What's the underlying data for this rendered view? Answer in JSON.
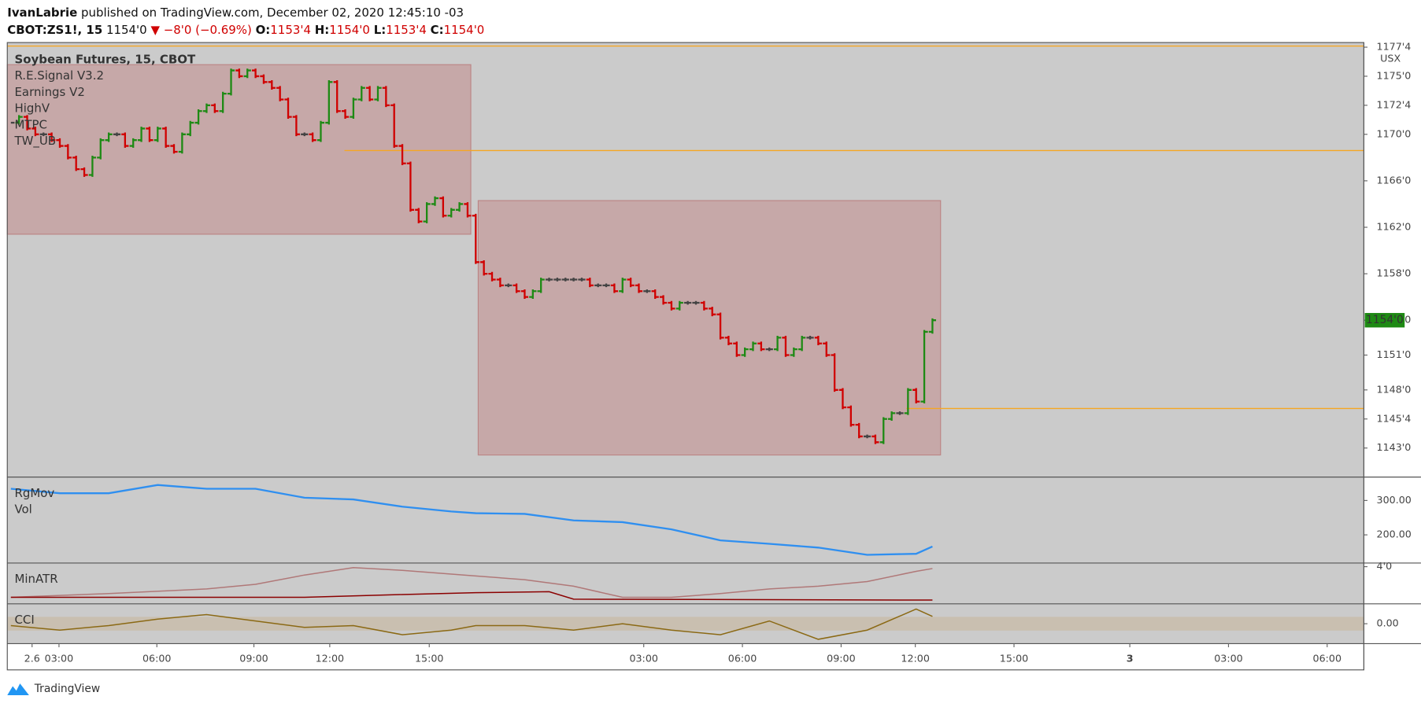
{
  "header": {
    "author": "IvanLabrie",
    "published": "published on TradingView.com, December 02, 2020 12:45:10 -03"
  },
  "quote": {
    "symbol": "CBOT:ZS1!, 15",
    "last": "1154'0",
    "change": "▼ −8'0 (−0.69%)",
    "open_label": "O:",
    "open": "1153'4",
    "high_label": "H:",
    "high": "1154'0",
    "low_label": "L:",
    "low": "1153'4",
    "close_label": "C:",
    "close": "1154'0"
  },
  "footer": "TradingView",
  "chart_data": [
    {
      "type": "bars",
      "title": "Soybean Futures, 15, CBOT",
      "indicators": [
        "R.E.Signal V3.2",
        "Earnings V2",
        "HighV",
        "MTPC",
        "TW_UB"
      ],
      "units": "USX",
      "values": [
        1171,
        1171.5,
        1170.5,
        1170,
        1170,
        1169.5,
        1169,
        1168,
        1167,
        1166.5,
        1168,
        1169.5,
        1170,
        1170,
        1169,
        1169.5,
        1170.5,
        1169.5,
        1170.5,
        1169,
        1168.5,
        1170,
        1171,
        1172,
        1172.5,
        1172,
        1173.5,
        1175.5,
        1175,
        1175.5,
        1175,
        1174.5,
        1174,
        1173,
        1171.5,
        1170,
        1170,
        1169.5,
        1171,
        1174.5,
        1172,
        1171.5,
        1173,
        1174,
        1173,
        1174,
        1172.5,
        1169,
        1167.5,
        1163.5,
        1162.5,
        1164,
        1164.5,
        1163,
        1163.5,
        1164,
        1163,
        1159,
        1158,
        1157.5,
        1157,
        1157,
        1156.5,
        1156,
        1156.5,
        1157.5,
        1157.5,
        1157.5,
        1157.5,
        1157.5,
        1157.5,
        1157,
        1157,
        1157,
        1156.5,
        1157.5,
        1157,
        1156.5,
        1156.5,
        1156,
        1155.5,
        1155,
        1155.5,
        1155.5,
        1155.5,
        1155,
        1154.5,
        1152.5,
        1152,
        1151,
        1151.5,
        1152,
        1151.5,
        1151.5,
        1152.5,
        1151,
        1151.5,
        1152.5,
        1152.5,
        1152,
        1151,
        1148,
        1146.5,
        1145,
        1144,
        1144,
        1143.5,
        1145.5,
        1146,
        1146,
        1148,
        1147,
        1153,
        1154
      ],
      "colors": {
        "up": "#1e8a14",
        "down": "#d00000",
        "flat": "#444444"
      },
      "xlim": [
        -0.44,
        165.9
      ],
      "xticks": [
        {
          "value": 5.9,
          "label": "03:00"
        },
        {
          "value": 17.9,
          "label": "06:00"
        },
        {
          "value": 29.8,
          "label": "09:00"
        },
        {
          "value": 39.1,
          "label": "12:00"
        },
        {
          "value": 51.3,
          "label": "15:00"
        },
        2.6,
        {
          "value": 77.6,
          "label": "03:00"
        },
        {
          "value": 89.7,
          "label": "06:00"
        },
        {
          "value": 101.8,
          "label": "09:00"
        },
        {
          "value": 110.9,
          "label": "12:00"
        },
        {
          "value": 123.0,
          "label": "15:00"
        },
        {
          "value": 137.2,
          "label": "3"
        },
        {
          "value": 149.3,
          "label": "03:00"
        },
        {
          "value": 161.4,
          "label": "06:00"
        }
      ],
      "ylim": [
        1140.5,
        1177.9
      ],
      "yticks": [
        {
          "value": 1177.5,
          "label": "1177'4"
        },
        {
          "value": 1175,
          "label": "1175'0"
        },
        {
          "value": 1172.5,
          "label": "1172'4"
        },
        {
          "value": 1170,
          "label": "1170'0"
        },
        {
          "value": 1166,
          "label": "1166'0"
        },
        {
          "value": 1162,
          "label": "1162'0"
        },
        {
          "value": 1158,
          "label": "1158'0"
        },
        {
          "value": 1154,
          "label": "1154'0"
        },
        {
          "value": 1151,
          "label": "1151'0"
        },
        {
          "value": 1148,
          "label": "1148'0"
        },
        {
          "value": 1145.5,
          "label": "1145'4"
        },
        {
          "value": 1143,
          "label": "1143'0"
        }
      ],
      "zones": [
        {
          "from": -0.44,
          "to": 56.4,
          "top": 1176,
          "bottom": 1161.4
        },
        {
          "from": 57.3,
          "to": 114,
          "top": 1164.3,
          "bottom": 1142.4
        }
      ],
      "levels": [
        {
          "value": 1177.6,
          "from": -0.44
        },
        {
          "value": 1168.6,
          "from": 40.9
        },
        {
          "value": 1146.4,
          "from": 109.8
        }
      ],
      "level_color": "#f5a623",
      "price_tag": {
        "value": 1154,
        "label": "1154'0"
      }
    },
    {
      "type": "line",
      "series": [
        {
          "name": "RgMov",
          "color": "#2f8ff0",
          "x": [
            0,
            6,
            12,
            18,
            24,
            30,
            36,
            42,
            48,
            54,
            57,
            63,
            69,
            75,
            81,
            87,
            93,
            99,
            105,
            111,
            113
          ],
          "values": [
            334,
            321,
            321,
            345,
            334,
            334,
            308,
            303,
            282,
            268,
            263,
            261,
            242,
            237,
            216,
            184,
            174,
            163,
            142,
            145,
            166
          ]
        },
        {
          "name": "Vol",
          "color": "#6cc3b8"
        }
      ],
      "ylim": [
        118,
        368
      ],
      "yticks": [
        {
          "value": 300,
          "label": "300.00"
        },
        {
          "value": 200,
          "label": "200.00"
        }
      ]
    },
    {
      "type": "line",
      "series": [
        {
          "name": "MinATR",
          "color": "#b07878",
          "x": [
            0,
            12,
            24,
            30,
            36,
            42,
            48,
            57,
            63,
            69,
            75,
            81,
            87,
            93,
            99,
            105,
            111,
            113
          ],
          "values": [
            0.7,
            1.1,
            1.6,
            2.1,
            3.1,
            3.9,
            3.6,
            3.0,
            2.6,
            1.9,
            0.7,
            0.7,
            1.1,
            1.6,
            1.9,
            2.4,
            3.5,
            3.8
          ]
        },
        {
          "color": "#8b0000",
          "x": [
            0,
            36,
            48,
            57,
            66,
            69,
            113
          ],
          "values": [
            0.7,
            0.7,
            1.0,
            1.2,
            1.3,
            0.5,
            0.4
          ]
        }
      ],
      "ylim": [
        0,
        4.39
      ],
      "yticks": [
        {
          "value": 4,
          "label": "4'0"
        }
      ]
    },
    {
      "type": "line",
      "series": [
        {
          "name": "CCI",
          "color": "#8b6914",
          "x": [
            0,
            6,
            12,
            18,
            24,
            30,
            36,
            42,
            48,
            54,
            57,
            63,
            69,
            75,
            81,
            87,
            93,
            99,
            105,
            111,
            113
          ],
          "values": [
            -27,
            -93,
            -27,
            67,
            133,
            40,
            -53,
            -27,
            -160,
            -93,
            -27,
            -27,
            -93,
            0,
            -93,
            -160,
            40,
            -227,
            -93,
            213,
            107
          ]
        }
      ],
      "band": [
        -100,
        100
      ],
      "ylim": [
        -290,
        290
      ],
      "yticks": [
        {
          "value": 0,
          "label": "0.00"
        }
      ]
    }
  ]
}
